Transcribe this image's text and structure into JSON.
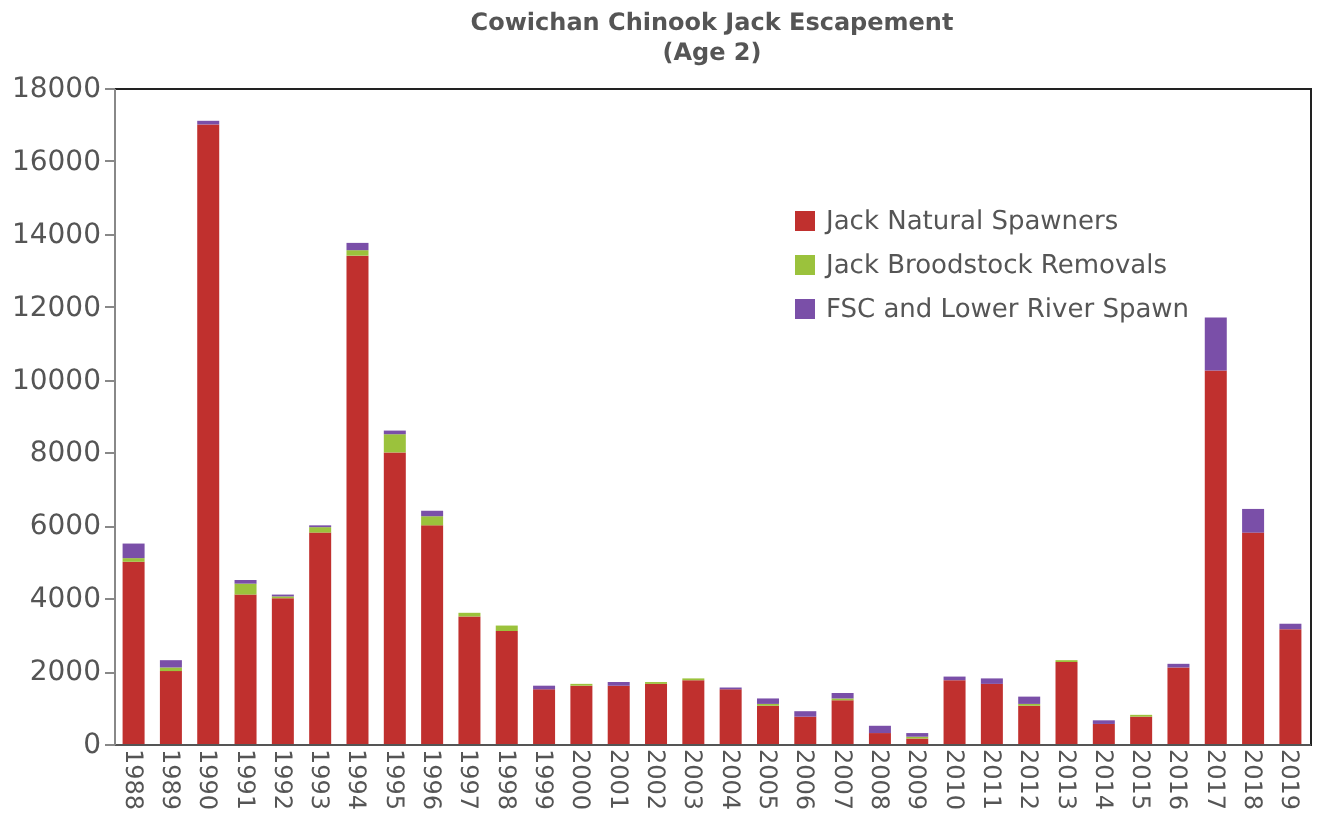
{
  "chart_data": {
    "type": "bar",
    "title": "Cowichan Chinook Jack Escapement",
    "subtitle": "(Age 2)",
    "stacked": true,
    "legend": "top right",
    "grid": false,
    "categories": [
      "1988",
      "1989",
      "1990",
      "1991",
      "1992",
      "1993",
      "1994",
      "1995",
      "1996",
      "1997",
      "1998",
      "1999",
      "2000",
      "2001",
      "2002",
      "2003",
      "2004",
      "2005",
      "2006",
      "2007",
      "2008",
      "2009",
      "2010",
      "2011",
      "2012",
      "2013",
      "2014",
      "2015",
      "2016",
      "2017",
      "2018",
      "2019"
    ],
    "ylim": [
      0,
      18000
    ],
    "yticks": [
      0,
      2000,
      4000,
      6000,
      8000,
      10000,
      12000,
      14000,
      16000,
      18000
    ],
    "series": [
      {
        "name": "Jack Natural Spawners",
        "color": "#c0302e",
        "values": [
          5000,
          2000,
          17000,
          4100,
          4000,
          5800,
          13400,
          8000,
          6000,
          3500,
          3100,
          1500,
          1600,
          1600,
          1650,
          1750,
          1500,
          1050,
          750,
          1200,
          300,
          150,
          1750,
          1650,
          1050,
          2250,
          550,
          750,
          2100,
          10250,
          5800,
          3150
        ]
      },
      {
        "name": "Jack Broodstock Removals",
        "color": "#9bc23c",
        "values": [
          100,
          100,
          0,
          300,
          50,
          150,
          150,
          500,
          250,
          100,
          150,
          0,
          50,
          0,
          50,
          50,
          0,
          50,
          0,
          50,
          0,
          50,
          0,
          0,
          50,
          50,
          0,
          50,
          0,
          0,
          0,
          0
        ]
      },
      {
        "name": "FSC and Lower River Spawn",
        "color": "#7a4fa8",
        "values": [
          400,
          200,
          100,
          100,
          50,
          50,
          200,
          100,
          150,
          0,
          0,
          100,
          0,
          100,
          0,
          0,
          50,
          150,
          150,
          150,
          200,
          100,
          100,
          150,
          200,
          0,
          100,
          0,
          100,
          1450,
          650,
          150
        ]
      }
    ]
  }
}
